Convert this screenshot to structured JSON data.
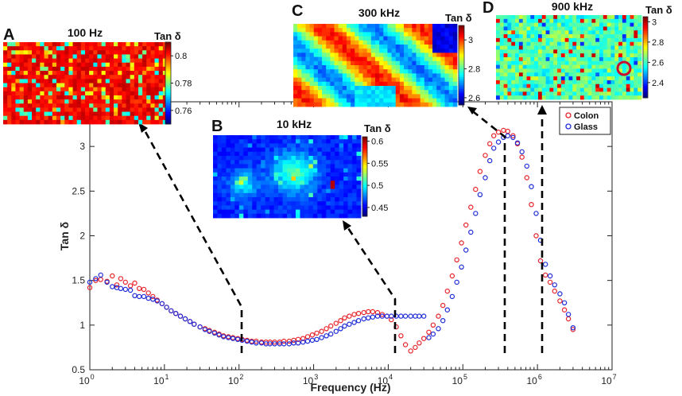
{
  "chart_data": {
    "type": "scatter",
    "xscale": "log",
    "xlabel": "Frequency (Hz)",
    "ylabel": "Tan δ",
    "xlim": [
      1,
      10000000
    ],
    "ylim": [
      0.5,
      3.5
    ],
    "yticks": [
      0.5,
      1,
      1.5,
      2,
      2.5,
      3
    ],
    "ytick_labels": [
      "0.5",
      "1",
      "1.5",
      "2",
      "2.5",
      "3"
    ],
    "xticks": [
      {
        "base": "10",
        "exp": "0"
      },
      {
        "base": "10",
        "exp": "1"
      },
      {
        "base": "10",
        "exp": "2"
      },
      {
        "base": "10",
        "exp": "3"
      },
      {
        "base": "10",
        "exp": "4"
      },
      {
        "base": "10",
        "exp": "5"
      },
      {
        "base": "10",
        "exp": "6"
      },
      {
        "base": "10",
        "exp": "7"
      }
    ],
    "legend": {
      "position": "top-right",
      "entries": [
        "Colon",
        "Glass"
      ]
    },
    "series": [
      {
        "name": "Colon",
        "color": "#e8232a",
        "marker": "open-circle",
        "x": [
          1.0,
          1.2,
          1.4,
          1.7,
          2.0,
          2.3,
          2.6,
          3.0,
          3.5,
          4.0,
          4.6,
          5.3,
          6.1,
          7.0,
          8.0,
          9.3,
          10.7,
          12.3,
          14.2,
          16.4,
          19,
          22,
          25,
          30,
          35,
          40,
          47,
          54,
          62,
          72,
          83,
          96,
          110,
          128,
          148,
          170,
          200,
          230,
          260,
          300,
          350,
          400,
          470,
          540,
          620,
          720,
          830,
          960,
          1100,
          1280,
          1480,
          1700,
          2000,
          2300,
          2600,
          3000,
          3500,
          4000,
          4700,
          5400,
          6200,
          7200,
          8300,
          9600,
          11000,
          12800,
          14800,
          17000,
          20000,
          23000,
          26000,
          30000,
          35000,
          40000,
          47000,
          54000,
          62000,
          72000,
          83000,
          96000,
          110000,
          128000,
          148000,
          170000,
          200000,
          230000,
          260000,
          300000,
          350000,
          400000,
          470000,
          540000,
          620000,
          720000,
          830000,
          960000,
          1100000,
          1280000,
          1480000,
          1700000,
          2000000,
          2300000,
          2600000,
          3000000
        ],
        "y": [
          1.42,
          1.5,
          1.51,
          1.49,
          1.55,
          1.45,
          1.52,
          1.48,
          1.44,
          1.47,
          1.41,
          1.4,
          1.36,
          1.32,
          1.28,
          1.24,
          1.2,
          1.16,
          1.13,
          1.1,
          1.07,
          1.04,
          1.01,
          0.98,
          0.96,
          0.94,
          0.92,
          0.9,
          0.88,
          0.87,
          0.86,
          0.85,
          0.84,
          0.83,
          0.82,
          0.82,
          0.81,
          0.81,
          0.81,
          0.81,
          0.81,
          0.82,
          0.82,
          0.83,
          0.84,
          0.85,
          0.87,
          0.89,
          0.91,
          0.93,
          0.96,
          0.99,
          1.02,
          1.05,
          1.08,
          1.1,
          1.12,
          1.13,
          1.14,
          1.15,
          1.15,
          1.14,
          1.12,
          1.1,
          1.06,
          0.98,
          0.88,
          0.78,
          0.71,
          0.75,
          0.8,
          0.85,
          0.92,
          1.0,
          1.1,
          1.22,
          1.38,
          1.55,
          1.73,
          1.92,
          2.12,
          2.32,
          2.52,
          2.72,
          2.9,
          3.03,
          3.12,
          3.16,
          3.18,
          3.17,
          3.12,
          3.03,
          2.88,
          2.65,
          2.35,
          2.0,
          1.72,
          1.56,
          1.48,
          1.38,
          1.27,
          1.17,
          1.07,
          0.95
        ]
      },
      {
        "name": "Glass",
        "color": "#1f2bd6",
        "marker": "open-circle",
        "x": [
          1.0,
          1.2,
          1.4,
          1.7,
          2.0,
          2.3,
          2.6,
          3.0,
          3.5,
          4.0,
          4.6,
          5.3,
          6.1,
          7.0,
          8.0,
          9.3,
          10.7,
          12.3,
          14.2,
          16.4,
          19,
          22,
          25,
          30,
          35,
          40,
          47,
          54,
          62,
          72,
          83,
          96,
          110,
          128,
          148,
          170,
          200,
          230,
          260,
          300,
          350,
          400,
          470,
          540,
          620,
          720,
          830,
          960,
          1100,
          1280,
          1480,
          1700,
          2000,
          2300,
          2600,
          3000,
          3500,
          4000,
          4700,
          5400,
          6200,
          7200,
          8300,
          9600,
          11000,
          12800,
          14800,
          17000,
          20000,
          23000,
          26000,
          30000,
          35000,
          40000,
          47000,
          54000,
          62000,
          72000,
          83000,
          96000,
          110000,
          128000,
          148000,
          170000,
          200000,
          230000,
          260000,
          300000,
          350000,
          400000,
          470000,
          540000,
          620000,
          720000,
          830000,
          960000,
          1100000,
          1280000,
          1480000,
          1700000,
          2000000,
          2300000,
          2600000,
          3000000
        ],
        "y": [
          1.48,
          1.52,
          1.56,
          1.48,
          1.43,
          1.42,
          1.41,
          1.4,
          1.39,
          1.33,
          1.32,
          1.32,
          1.3,
          1.29,
          1.27,
          1.24,
          1.2,
          1.16,
          1.13,
          1.1,
          1.07,
          1.04,
          1.01,
          0.98,
          0.95,
          0.93,
          0.91,
          0.89,
          0.87,
          0.86,
          0.85,
          0.84,
          0.83,
          0.82,
          0.81,
          0.8,
          0.8,
          0.79,
          0.79,
          0.79,
          0.79,
          0.79,
          0.79,
          0.8,
          0.8,
          0.81,
          0.82,
          0.83,
          0.84,
          0.86,
          0.88,
          0.9,
          0.93,
          0.96,
          0.99,
          1.01,
          1.03,
          1.05,
          1.07,
          1.08,
          1.09,
          1.1,
          1.1,
          1.1,
          1.1,
          1.1,
          1.1,
          1.1,
          1.1,
          1.1,
          1.1,
          1.1,
          0.86,
          0.9,
          0.96,
          1.05,
          1.17,
          1.32,
          1.48,
          1.65,
          1.84,
          2.04,
          2.25,
          2.46,
          2.65,
          2.84,
          2.98,
          3.05,
          3.1,
          3.12,
          3.1,
          3.04,
          2.94,
          2.78,
          2.55,
          2.25,
          1.95,
          1.68,
          1.55,
          1.45,
          1.35,
          1.25,
          1.12,
          0.97
        ]
      }
    ],
    "annotations": [
      {
        "type": "dashed-arrow",
        "from_freq": 100,
        "to_panel": "A"
      },
      {
        "type": "dashed-arrow",
        "from_freq": 10000,
        "to_panel": "B"
      },
      {
        "type": "dashed-arrow",
        "from_freq": 300000,
        "to_panel": "C"
      },
      {
        "type": "dashed-arrow",
        "from_freq": 900000,
        "to_panel": "D"
      }
    ]
  },
  "insets": [
    {
      "letter": "A",
      "title": "100 Hz",
      "cb_title": "Tan δ",
      "cb_ticks": [
        "0.8",
        "0.78",
        "0.76"
      ],
      "cb_values": [
        0.8,
        0.78,
        0.76
      ],
      "range": [
        0.75,
        0.81
      ],
      "palette": "hot",
      "seed": 11
    },
    {
      "letter": "B",
      "title": "10 kHz",
      "cb_title": "Tan δ",
      "cb_ticks": [
        "0.6",
        "0.55",
        "0.5",
        "0.45"
      ],
      "cb_values": [
        0.6,
        0.55,
        0.5,
        0.45
      ],
      "range": [
        0.43,
        0.61
      ],
      "palette": "cool",
      "seed": 23
    },
    {
      "letter": "C",
      "title": "300 kHz",
      "cb_title": "Tan δ",
      "cb_ticks": [
        "3",
        "2.8",
        "2.6"
      ],
      "cb_values": [
        3.0,
        2.8,
        2.6
      ],
      "range": [
        2.55,
        3.1
      ],
      "palette": "bands",
      "seed": 37
    },
    {
      "letter": "D",
      "title": "900 kHz",
      "cb_title": "Tan δ",
      "cb_ticks": [
        "3",
        "2.8",
        "2.6",
        "2.4"
      ],
      "cb_values": [
        3.0,
        2.8,
        2.6,
        2.4
      ],
      "range": [
        2.25,
        3.05
      ],
      "palette": "noise",
      "seed": 51
    }
  ],
  "colors": {
    "axis": "#222222",
    "arrow": "#000000",
    "colon": "#e8232a",
    "glass": "#1f2bd6"
  }
}
